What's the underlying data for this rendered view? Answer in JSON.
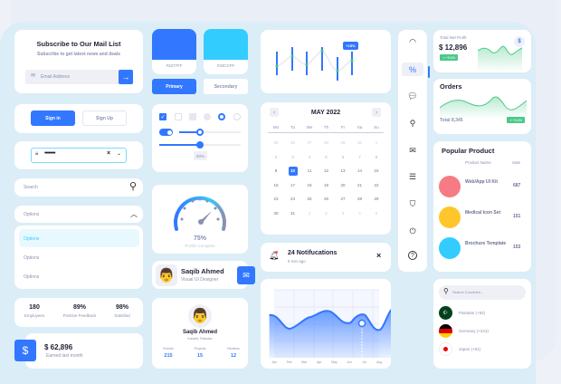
{
  "subscribe": {
    "title": "Subscribe to Our Mail List",
    "subtitle": "Subscribe to get latest news and deals",
    "placeholder": "Email Address"
  },
  "swatches": [
    {
      "color": "#3277FF",
      "label": "#3277FF"
    },
    {
      "color": "#33CCFF",
      "label": "#33CCFF"
    }
  ],
  "buttons": {
    "primary": "Primary",
    "secondary": "Secondary",
    "sign_in": "Sign in",
    "sign_up": "Sign Up"
  },
  "password": {
    "value": "••••••••"
  },
  "search": {
    "placeholder": "Search"
  },
  "dropdown": {
    "selected": "Options",
    "options": [
      "Options",
      "Options",
      "Options"
    ]
  },
  "stats": [
    {
      "value": "180",
      "label": "Employees"
    },
    {
      "value": "89%",
      "label": "Positive Feedback"
    },
    {
      "value": "98%",
      "label": "Satisfied"
    }
  ],
  "earned": {
    "value": "$ 62,896",
    "label": "Earned last month",
    "icon": "$"
  },
  "controls": {
    "slider1": 0.5,
    "slider2": 0.5,
    "slider_label": "50%"
  },
  "gauge": {
    "value": "75%",
    "label": "Profile Complete",
    "fraction": 0.75
  },
  "profile_small": {
    "name": "Saqib Ahmed",
    "role": "Visual UI Designer"
  },
  "profile_big": {
    "name": "Saqib Ahmed",
    "location": "Karachi, Pakistan",
    "stats": [
      {
        "label": "Friends",
        "value": "215"
      },
      {
        "label": "Projects",
        "value": "15"
      },
      {
        "label": "Reviews",
        "value": "12"
      }
    ]
  },
  "bar_chart": {
    "badge": "+15%"
  },
  "calendar": {
    "title": "MAY 2022",
    "weekdays": [
      "Mo",
      "Tu",
      "We",
      "Th",
      "Fr",
      "Sa",
      "Su"
    ],
    "weeks": [
      [
        "25",
        "26",
        "27",
        "28",
        "29",
        "30",
        "1"
      ],
      [
        "2",
        "3",
        "4",
        "5",
        "6",
        "7",
        "8"
      ],
      [
        "9",
        "10",
        "11",
        "12",
        "13",
        "14",
        "15"
      ],
      [
        "16",
        "17",
        "18",
        "19",
        "20",
        "21",
        "22"
      ],
      [
        "23",
        "24",
        "25",
        "26",
        "27",
        "28",
        "29"
      ],
      [
        "30",
        "31",
        "1",
        "2",
        "3",
        "4",
        "5"
      ]
    ],
    "selected": "10"
  },
  "notifications": {
    "title": "24 Notifucations",
    "time": "5 min ago"
  },
  "area_chart": {
    "months": [
      "Jan",
      "Feb",
      "Mar",
      "Apr",
      "May",
      "Jun",
      "Jul",
      "Aug"
    ]
  },
  "sidebar_icons": [
    "speedometer-icon",
    "percent-icon",
    "chat-icon",
    "search-icon",
    "mail-icon",
    "sliders-icon",
    "shield-icon",
    "power-icon",
    "help-icon"
  ],
  "net_profit": {
    "title": "Total Net Profit",
    "value": "$ 12,896",
    "badge": "↗ +5.6%",
    "icon": "$"
  },
  "orders": {
    "title": "Orders",
    "total": "Total 8,345",
    "badge": "↗ +5.6%"
  },
  "popular": {
    "title": "Popular Product",
    "col_name": "Product Name",
    "col_sale": "Sale",
    "items": [
      {
        "name": "Web/App UI Kit",
        "sale": "687",
        "color": "#f77b84"
      },
      {
        "name": "Medical Icon Set",
        "sale": "151",
        "color": "#ffc62b"
      },
      {
        "name": "Brochure Template",
        "sale": "153",
        "color": "#33ccff"
      }
    ]
  },
  "countries": {
    "placeholder": "Search Countries...",
    "items": [
      {
        "name": "Pakistan (+92)"
      },
      {
        "name": "Germany (+241)"
      },
      {
        "name": "Japan (+81)"
      }
    ]
  }
}
